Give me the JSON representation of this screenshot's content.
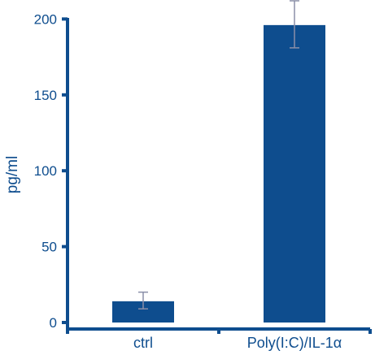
{
  "chart_data": {
    "type": "bar",
    "title": "",
    "xlabel": "",
    "ylabel": "pg/ml",
    "categories": [
      "ctrl",
      "Poly(I:C)/IL-1α"
    ],
    "values": [
      14,
      196
    ],
    "error_low": [
      9,
      181
    ],
    "error_high": [
      20,
      212
    ],
    "ylim": [
      0,
      210
    ],
    "yticks": [
      0,
      50,
      100,
      150,
      200
    ],
    "ytick_labels": [
      "0",
      "50",
      "100",
      "150",
      "200"
    ],
    "grid": false,
    "legend": "none"
  },
  "colors": {
    "bar": "#0e4d8e",
    "axis": "#0e4d8e",
    "text": "#0e4d8e",
    "error_bar": "#8a8fa8"
  }
}
